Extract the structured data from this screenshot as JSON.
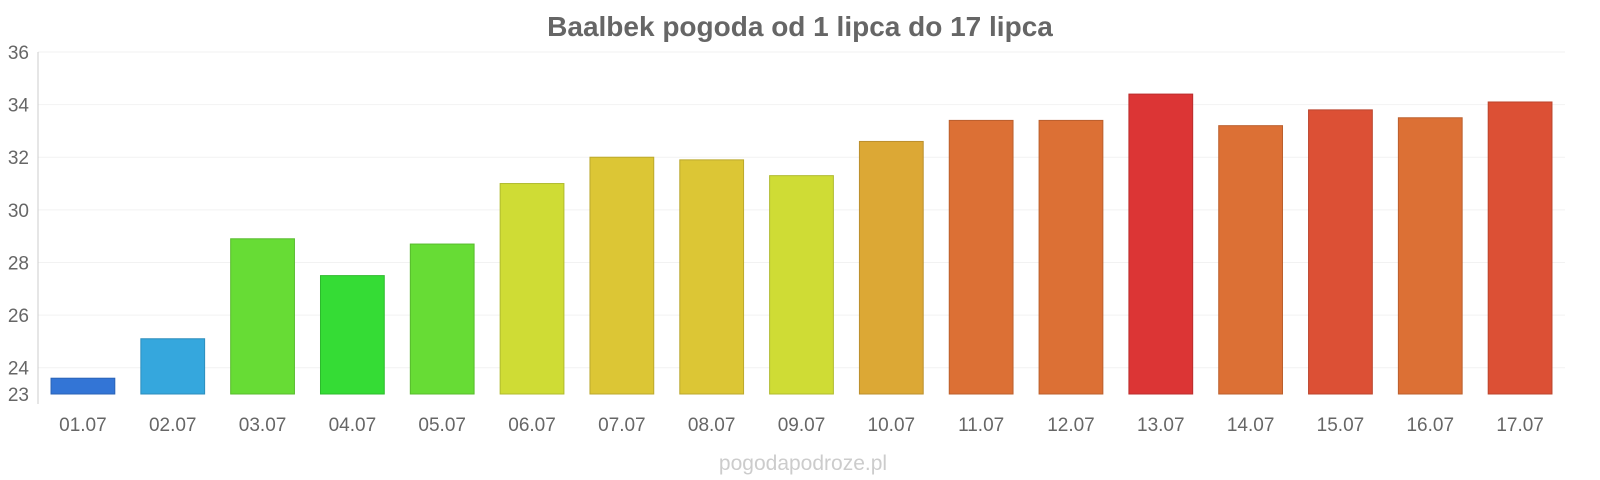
{
  "chart_data": {
    "type": "bar",
    "title": "Baalbek pogoda od 1 lipca do 17 lipca",
    "categories": [
      "01.07",
      "02.07",
      "03.07",
      "04.07",
      "05.07",
      "06.07",
      "07.07",
      "08.07",
      "09.07",
      "10.07",
      "11.07",
      "12.07",
      "13.07",
      "14.07",
      "15.07",
      "16.07",
      "17.07"
    ],
    "values": [
      23.6,
      25.1,
      28.9,
      27.5,
      28.7,
      31.0,
      32.0,
      31.9,
      31.3,
      32.6,
      33.4,
      33.4,
      34.4,
      33.2,
      33.8,
      33.5,
      34.1
    ],
    "colors": [
      "#3375d6",
      "#35a7dd",
      "#67dc35",
      "#35dc35",
      "#67dc35",
      "#cfdc35",
      "#dcc635",
      "#dcc635",
      "#cfdc35",
      "#dca835",
      "#dc7035",
      "#dc7035",
      "#dc3535",
      "#dc7035",
      "#dc5035",
      "#dc7035",
      "#dc5035"
    ],
    "yticks": [
      23,
      24,
      26,
      28,
      30,
      32,
      34,
      36
    ],
    "ylim": [
      23,
      36
    ],
    "xlabel": "",
    "ylabel": "",
    "grid": true,
    "legend": "none"
  },
  "watermark": "pogodapodroze.pl"
}
